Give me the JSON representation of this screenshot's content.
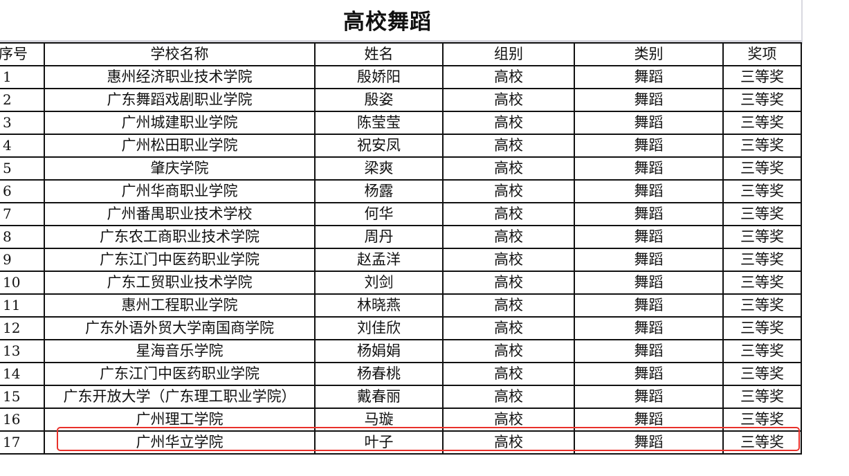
{
  "title": "高校舞蹈",
  "columns": [
    "序号",
    "学校名称",
    "姓名",
    "组别",
    "类别",
    "奖项"
  ],
  "rows": [
    [
      "1",
      "惠州经济职业技术学院",
      "殷娇阳",
      "高校",
      "舞蹈",
      "三等奖"
    ],
    [
      "2",
      "广东舞蹈戏剧职业学院",
      "殷姿",
      "高校",
      "舞蹈",
      "三等奖"
    ],
    [
      "3",
      "广州城建职业学院",
      "陈莹莹",
      "高校",
      "舞蹈",
      "三等奖"
    ],
    [
      "4",
      "广州松田职业学院",
      "祝安凤",
      "高校",
      "舞蹈",
      "三等奖"
    ],
    [
      "5",
      "肇庆学院",
      "梁爽",
      "高校",
      "舞蹈",
      "三等奖"
    ],
    [
      "6",
      "广州华商职业学院",
      "杨露",
      "高校",
      "舞蹈",
      "三等奖"
    ],
    [
      "7",
      "广州番禺职业技术学校",
      "何华",
      "高校",
      "舞蹈",
      "三等奖"
    ],
    [
      "8",
      "广东农工商职业技术学院",
      "周丹",
      "高校",
      "舞蹈",
      "三等奖"
    ],
    [
      "9",
      "广东江门中医药职业学院",
      "赵孟洋",
      "高校",
      "舞蹈",
      "三等奖"
    ],
    [
      "10",
      "广东工贸职业技术学院",
      "刘剑",
      "高校",
      "舞蹈",
      "三等奖"
    ],
    [
      "11",
      "惠州工程职业学院",
      "林晓燕",
      "高校",
      "舞蹈",
      "三等奖"
    ],
    [
      "12",
      "广东外语外贸大学南国商学院",
      "刘佳欣",
      "高校",
      "舞蹈",
      "三等奖"
    ],
    [
      "13",
      "星海音乐学院",
      "杨娟娟",
      "高校",
      "舞蹈",
      "三等奖"
    ],
    [
      "14",
      "广东江门中医药职业学院",
      "杨春桃",
      "高校",
      "舞蹈",
      "三等奖"
    ],
    [
      "15",
      "广东开放大学（广东理工职业学院）",
      "戴春丽",
      "高校",
      "舞蹈",
      "三等奖"
    ],
    [
      "16",
      "广州理工学院",
      "马璇",
      "高校",
      "舞蹈",
      "三等奖"
    ],
    [
      "17",
      "广州华立学院",
      "叶子",
      "高校",
      "舞蹈",
      "三等奖"
    ]
  ],
  "highlight_color": "#e8302a"
}
